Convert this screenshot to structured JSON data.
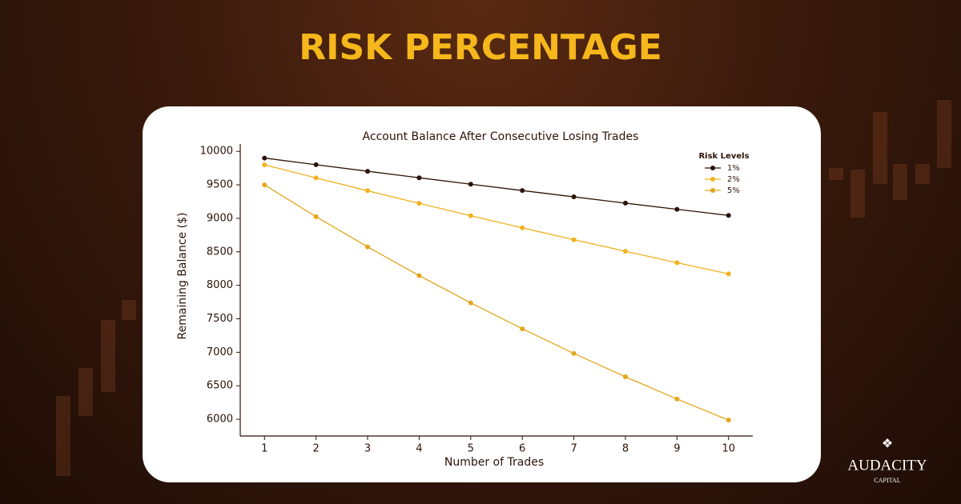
{
  "header": {
    "title": "RISK PERCENTAGE"
  },
  "chart_data": {
    "type": "line",
    "title": "Account Balance After Consecutive Losing Trades",
    "x_label": "Number of Trades",
    "y_label": "Remaining Balance ($)",
    "x": [
      1,
      2,
      3,
      4,
      5,
      6,
      7,
      8,
      9,
      10
    ],
    "xlim": [
      0.53,
      10.47
    ],
    "xticks": [
      1,
      2,
      3,
      4,
      5,
      6,
      7,
      8,
      9,
      10
    ],
    "ylim": [
      5750,
      10110
    ],
    "yticks": [
      6000,
      6500,
      7000,
      7500,
      8000,
      8500,
      9000,
      9500,
      10000
    ],
    "grid": false,
    "legend_title": "Risk Levels",
    "legend": "upper right",
    "series": [
      {
        "name": "1%",
        "color": "#2b1307",
        "values": [
          9900,
          9801,
          9703,
          9606,
          9510,
          9415,
          9321,
          9227,
          9135,
          9044
        ]
      },
      {
        "name": "2%",
        "color": "#efb21f",
        "values": [
          9800,
          9604,
          9412,
          9224,
          9039,
          8858,
          8681,
          8508,
          8337,
          8171
        ]
      },
      {
        "name": "5%",
        "color": "#e3a61c",
        "values": [
          9500,
          9025,
          8574,
          8145,
          7738,
          7351,
          6983,
          6634,
          6302,
          5987
        ]
      }
    ]
  },
  "logo": {
    "name": "AUDACITY",
    "sub": "CAPITAL"
  }
}
